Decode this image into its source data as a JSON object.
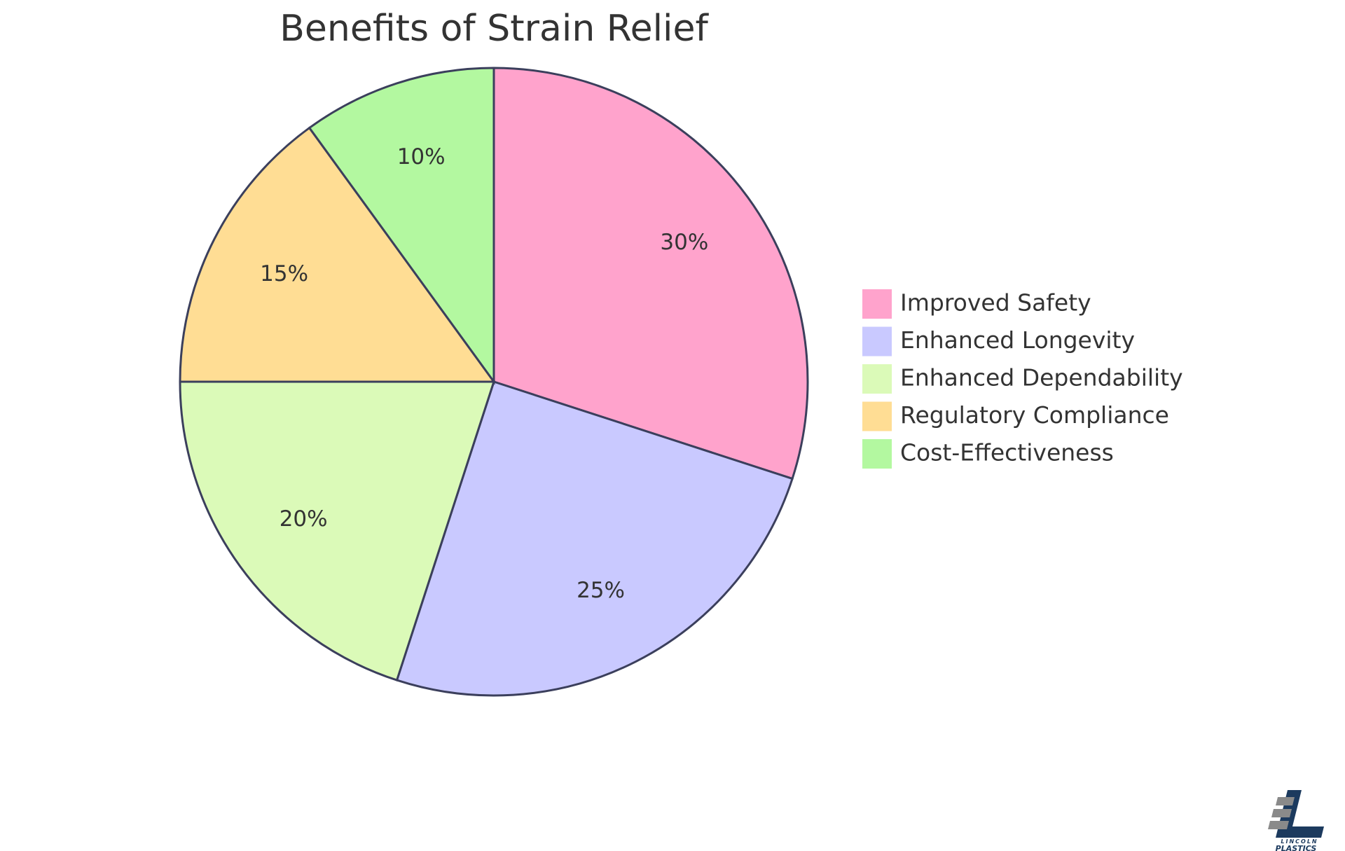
{
  "chart_data": {
    "type": "pie",
    "title": "Benefits of Strain Relief",
    "categories": [
      "Improved Safety",
      "Enhanced Longevity",
      "Enhanced Dependability",
      "Regulatory Compliance",
      "Cost-Effectiveness"
    ],
    "values": [
      30,
      25,
      20,
      15,
      10
    ],
    "labels": [
      "30%",
      "25%",
      "20%",
      "15%",
      "10%"
    ],
    "colors": [
      "#ffa3cc",
      "#c9c9ff",
      "#dbfab8",
      "#ffdd94",
      "#b3f8a0"
    ],
    "legend_position": "right",
    "start": "top, clockwise"
  },
  "logo": {
    "name_top": "LINCOLN",
    "name_bottom": "PLASTICS"
  }
}
